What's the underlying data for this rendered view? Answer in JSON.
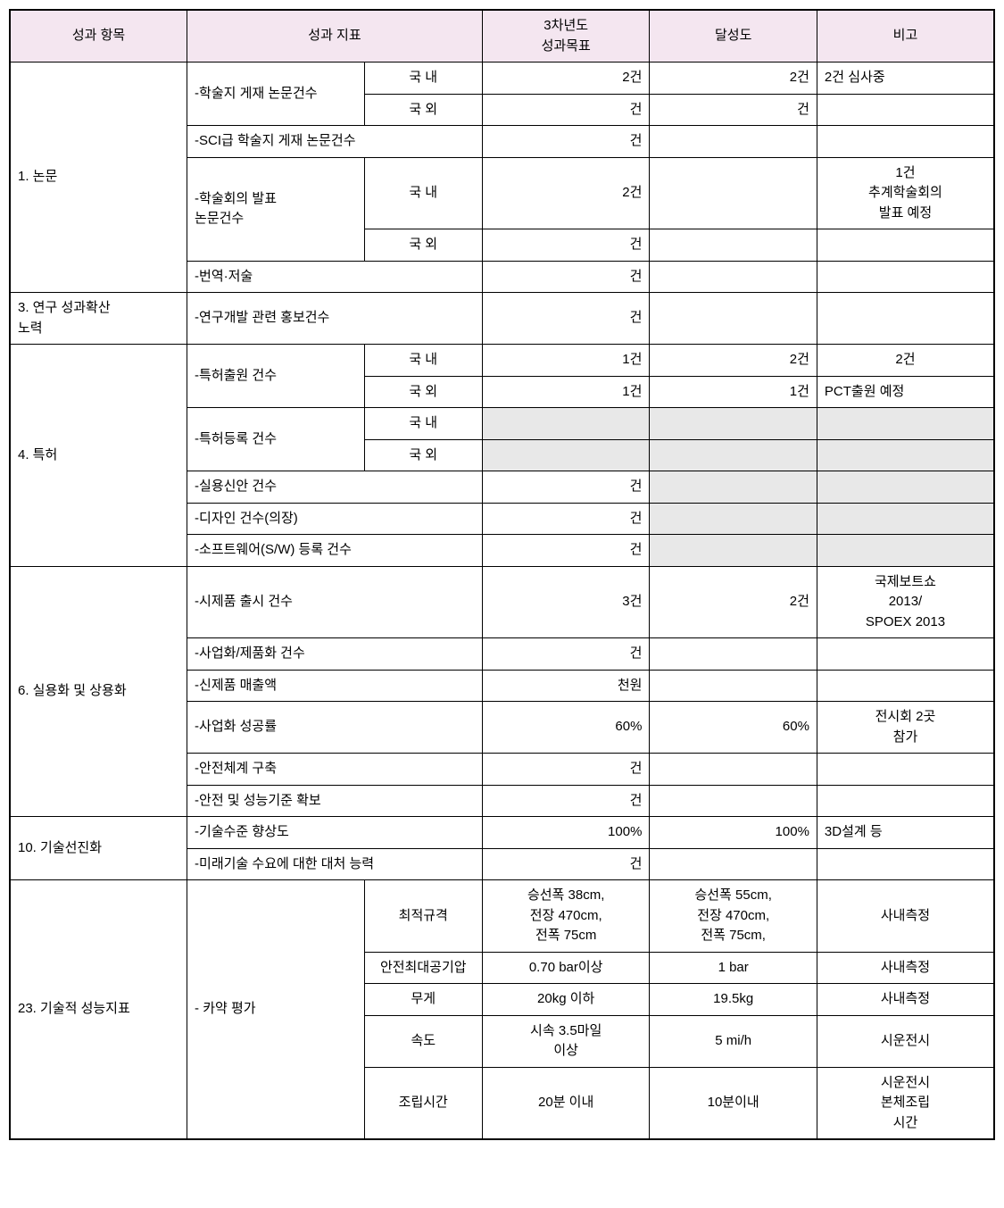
{
  "header": {
    "col_category": "성과 항목",
    "col_indicator": "성과 지표",
    "col_target": "3차년도\n성과목표",
    "col_achievement": "달성도",
    "col_note": "비고"
  },
  "rows": {
    "r1": {
      "cat": "1. 논문",
      "ind1": "-학술지 게재 논문건수",
      "ind2": "국 내",
      "target": "2건",
      "ach": "2건",
      "note": "2건 심사중"
    },
    "r2": {
      "ind2": "국 외",
      "target": "건",
      "ach": "건",
      "note": ""
    },
    "r3": {
      "ind1": "-SCI급 학술지 게재 논문건수",
      "target": "건",
      "ach": "",
      "note": ""
    },
    "r4": {
      "ind1": "-학술회의 발표\n논문건수",
      "ind2": "국 내",
      "target": "2건",
      "ach": "",
      "note": "1건\n추계학술회의\n발표 예정"
    },
    "r5": {
      "ind2": "국 외",
      "target": "건",
      "ach": "",
      "note": ""
    },
    "r6": {
      "ind1": "-번역·저술",
      "target": "건",
      "ach": "",
      "note": ""
    },
    "r7": {
      "cat": "3. 연구 성과확산\n노력",
      "ind1": "-연구개발 관련 홍보건수",
      "target": "건",
      "ach": "",
      "note": ""
    },
    "r8": {
      "cat": "4. 특허",
      "ind1": "-특허출원 건수",
      "ind2": "국 내",
      "target": "1건",
      "ach": "2건",
      "note": "2건"
    },
    "r9": {
      "ind2": "국 외",
      "target": "1건",
      "ach": "1건",
      "note": "PCT출원 예정"
    },
    "r10": {
      "ind1": "-특허등록 건수",
      "ind2": "국 내",
      "target": "",
      "ach": "",
      "note": ""
    },
    "r11": {
      "ind2": "국 외",
      "target": "",
      "ach": "",
      "note": ""
    },
    "r12": {
      "ind1": "-실용신안 건수",
      "target": "건",
      "ach": "",
      "note": ""
    },
    "r13": {
      "ind1": "-디자인 건수(의장)",
      "target": "건",
      "ach": "",
      "note": ""
    },
    "r14": {
      "ind1": "-소프트웨어(S/W) 등록 건수",
      "target": "건",
      "ach": "",
      "note": ""
    },
    "r15": {
      "cat": "6. 실용화 및 상용화",
      "ind1": "-시제품 출시 건수",
      "target": "3건",
      "ach": "2건",
      "note": "국제보트쇼\n2013/\nSPOEX 2013"
    },
    "r16": {
      "ind1": "-사업화/제품화 건수",
      "target": "건",
      "ach": "",
      "note": ""
    },
    "r17": {
      "ind1": "-신제품 매출액",
      "target": "천원",
      "ach": "",
      "note": ""
    },
    "r18": {
      "ind1": "-사업화 성공률",
      "target": "60%",
      "ach": "60%",
      "note": "전시회 2곳\n참가"
    },
    "r19": {
      "ind1": "-안전체계 구축",
      "target": "건",
      "ach": "",
      "note": ""
    },
    "r20": {
      "ind1": "-안전 및 성능기준 확보",
      "target": "건",
      "ach": "",
      "note": ""
    },
    "r21": {
      "cat": "10. 기술선진화",
      "ind1": "-기술수준 향상도",
      "target": "100%",
      "ach": "100%",
      "note": "3D설계 등"
    },
    "r22": {
      "ind1": "-미래기술 수요에 대한 대처 능력",
      "target": "건",
      "ach": "",
      "note": ""
    },
    "r23": {
      "cat": "23. 기술적 성능지표",
      "ind1": "- 카약 평가",
      "ind2": "최적규격",
      "target": "승선폭 38cm,\n전장 470cm,\n전폭 75cm",
      "ach": "승선폭 55cm,\n전장 470cm,\n전폭 75cm,",
      "note": "사내측정"
    },
    "r24": {
      "ind2": "안전최대공기압",
      "target": "0.70 bar이상",
      "ach": "1 bar",
      "note": "사내측정"
    },
    "r25": {
      "ind2": "무게",
      "target": "20kg 이하",
      "ach": "19.5kg",
      "note": "사내측정"
    },
    "r26": {
      "ind2": "속도",
      "target": "시속 3.5마일\n이상",
      "ach": "5 mi/h",
      "note": "시운전시"
    },
    "r27": {
      "ind2": "조립시간",
      "target": "20분 이내",
      "ach": "10분이내",
      "note": "시운전시\n본체조립\n시간"
    }
  }
}
